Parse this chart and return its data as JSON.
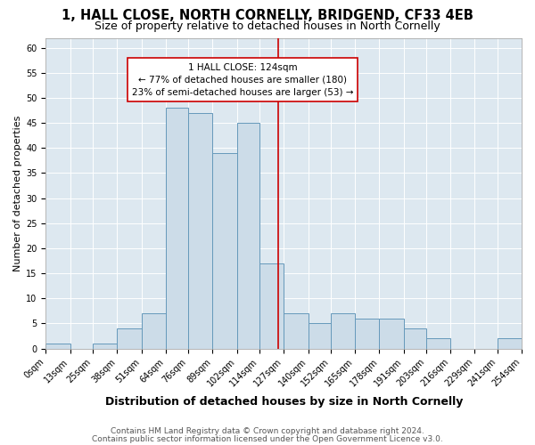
{
  "title1": "1, HALL CLOSE, NORTH CORNELLY, BRIDGEND, CF33 4EB",
  "title2": "Size of property relative to detached houses in North Cornelly",
  "xlabel": "Distribution of detached houses by size in North Cornelly",
  "ylabel": "Number of detached properties",
  "footnote1": "Contains HM Land Registry data © Crown copyright and database right 2024.",
  "footnote2": "Contains public sector information licensed under the Open Government Licence v3.0.",
  "annotation_line1": "1 HALL CLOSE: 124sqm",
  "annotation_line2": "← 77% of detached houses are smaller (180)",
  "annotation_line3": "23% of semi-detached houses are larger (53) →",
  "property_sqm": 124,
  "bin_edges": [
    0,
    13,
    25,
    38,
    51,
    64,
    76,
    89,
    102,
    114,
    127,
    140,
    152,
    165,
    178,
    191,
    203,
    216,
    229,
    241,
    254
  ],
  "bar_heights": [
    1,
    0,
    1,
    4,
    7,
    48,
    47,
    39,
    45,
    17,
    7,
    5,
    7,
    6,
    6,
    4,
    2,
    0,
    0,
    2
  ],
  "bar_color": "#ccdce8",
  "bar_edge_color": "#6699bb",
  "vline_color": "#cc0000",
  "vline_x": 124,
  "annotation_box_edge_color": "#cc0000",
  "ylim": [
    0,
    62
  ],
  "yticks": [
    0,
    5,
    10,
    15,
    20,
    25,
    30,
    35,
    40,
    45,
    50,
    55,
    60
  ],
  "plot_bg_color": "#dde8f0",
  "title1_fontsize": 10.5,
  "title2_fontsize": 9,
  "xlabel_fontsize": 9,
  "ylabel_fontsize": 8,
  "annotation_fontsize": 7.5,
  "tick_fontsize": 7,
  "footnote_fontsize": 6.5
}
